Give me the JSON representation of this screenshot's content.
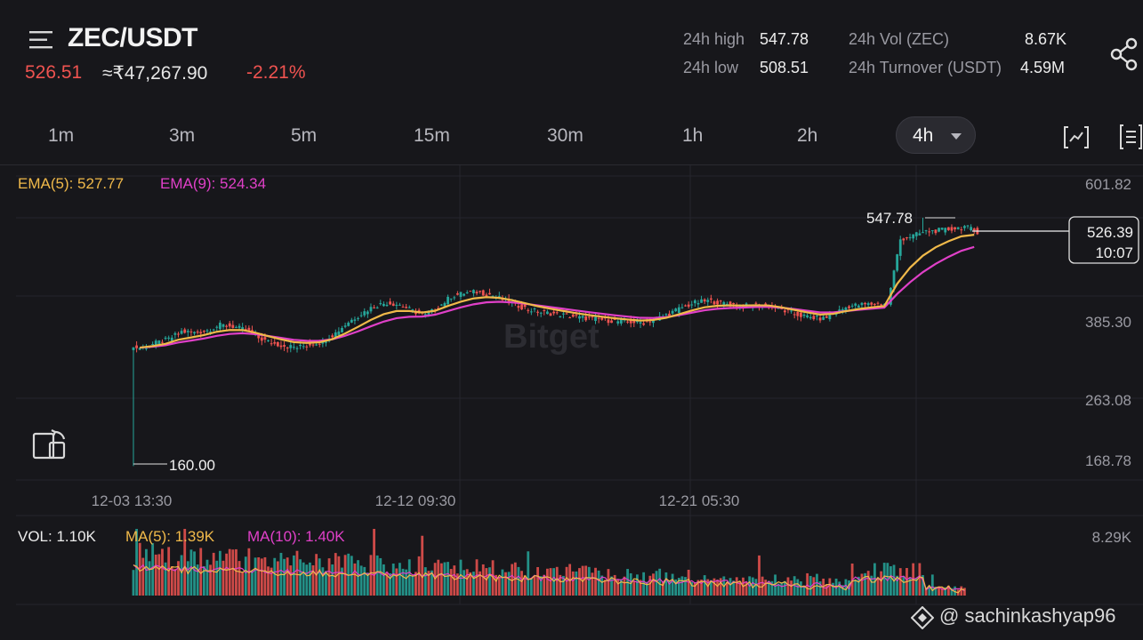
{
  "header": {
    "pair": "ZEC/USDT",
    "price": "526.51",
    "price_inr": "≈₹47,267.90",
    "change_pct": "-2.21%",
    "stats": {
      "high_label": "24h high",
      "high_value": "547.78",
      "low_label": "24h low",
      "low_value": "508.51",
      "vol_label": "24h Vol (ZEC)",
      "vol_value": "8.67K",
      "turnover_label": "24h Turnover (USDT)",
      "turnover_value": "4.59M"
    }
  },
  "timeframes": [
    "1m",
    "3m",
    "5m",
    "15m",
    "30m",
    "1h",
    "2h"
  ],
  "active_timeframe": "4h",
  "indicators": {
    "ema5_label": "EMA(5): 527.77",
    "ema9_label": "EMA(9): 524.34"
  },
  "price_axis": [
    "601.82",
    "385.30",
    "263.08",
    "168.78"
  ],
  "time_axis": [
    "12-03 13:30",
    "12-12 09:30",
    "12-21 05:30"
  ],
  "annotations": {
    "high_marker": "547.78",
    "low_marker": "160.00",
    "current_price": "526.39",
    "countdown": "10:07"
  },
  "volume": {
    "vol_label": "VOL: 1.10K",
    "ma5_label": "MA(5): 1.39K",
    "ma10_label": "MA(10): 1.40K",
    "axis_max": "8.29K"
  },
  "brand_watermark": "Bitget",
  "watermark": "@ sachinkashyap96",
  "colors": {
    "up": "#26a69a",
    "down": "#ef5350",
    "ema5": "#f0b94a",
    "ema9": "#e040c8",
    "bg": "#17171b"
  },
  "chart_data": {
    "type": "candlestick",
    "interval": "4h",
    "close": [
      345,
      352,
      358,
      370,
      368,
      372,
      380,
      378,
      372,
      360,
      352,
      348,
      345,
      350,
      355,
      368,
      385,
      398,
      410,
      415,
      412,
      402,
      395,
      408,
      425,
      430,
      432,
      428,
      420,
      412,
      405,
      400,
      398,
      395,
      392,
      390,
      388,
      386,
      385,
      384,
      390,
      398,
      408,
      415,
      418,
      415,
      412,
      410,
      412,
      410,
      402,
      396,
      392,
      390,
      400,
      410,
      412,
      413,
      414,
      514,
      520,
      526,
      528,
      530,
      534,
      526
    ],
    "ema5": 527.77,
    "ema9": 524.34,
    "high_24h": 547.78,
    "low": 160.0,
    "ylim": [
      168.78,
      601.82
    ],
    "volume_max": 8290
  }
}
